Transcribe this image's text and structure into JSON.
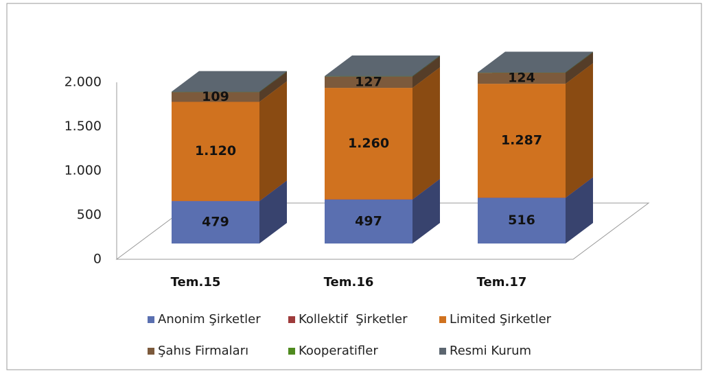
{
  "chart_data": {
    "type": "bar3d_stacked",
    "categories": [
      "Tem.15",
      "Tem.16",
      "Tem.17"
    ],
    "series": [
      {
        "name": "Anonim Şirketler",
        "color": "#5a6fb0",
        "side": "#38436e",
        "values": [
          479,
          497,
          516
        ],
        "data_labels": true
      },
      {
        "name": "Kollektif  Şirketler",
        "color": "#9e3b3b",
        "side": "#6a2626",
        "values": [
          2,
          2,
          2
        ],
        "data_labels": false
      },
      {
        "name": "Limited Şirketler",
        "color": "#d0721f",
        "side": "#8a4b12",
        "values": [
          1120,
          1260,
          1287
        ],
        "value_labels": [
          "1.120",
          "1.260",
          "1.287"
        ],
        "data_labels": true
      },
      {
        "name": "Şahıs Firmaları",
        "color": "#7c5a3c",
        "side": "#553d28",
        "values": [
          109,
          127,
          124
        ],
        "data_labels": true
      },
      {
        "name": "Kooperatifler",
        "color": "#4f8a1f",
        "side": "#355e14",
        "values": [
          1,
          1,
          1
        ],
        "data_labels": false
      },
      {
        "name": "Resmi Kurum",
        "color": "#5c6670",
        "side": "#3e454c",
        "values": [
          5,
          5,
          5
        ],
        "data_labels": false
      }
    ],
    "ylim": [
      0,
      2000
    ],
    "yticks": [
      0,
      500,
      {
        "value": 1000,
        "label": "1.000"
      },
      {
        "value": 1500,
        "label": "1.500"
      },
      {
        "value": 2000,
        "label": "2.000"
      }
    ]
  }
}
